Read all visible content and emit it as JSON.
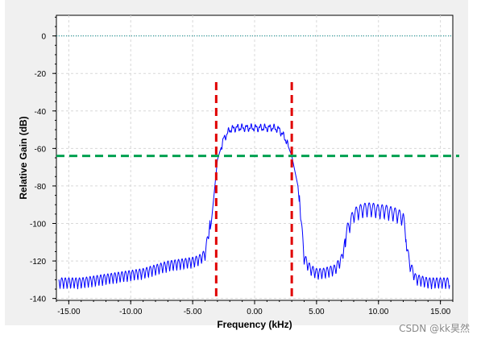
{
  "chart_data": {
    "type": "line",
    "xlabel": "Frequency (kHz)",
    "ylabel": "Relative Gain (dB)",
    "xlim": [
      -16.0,
      16.0
    ],
    "ylim": [
      -141,
      11
    ],
    "x_ticks": [
      -15.0,
      -10.0,
      -5.0,
      0.0,
      5.0,
      10.0,
      15.0
    ],
    "x_tick_labels": [
      "-15.00",
      "-10.00",
      "-5.00",
      "0.00",
      "5.00",
      "10.00",
      "15.00"
    ],
    "y_ticks": [
      0,
      -20,
      -40,
      -60,
      -80,
      -100,
      -120,
      -140
    ],
    "y_tick_labels": [
      "0",
      "-20",
      "-40",
      "-60",
      "-80",
      "-100",
      "-120",
      "-140"
    ],
    "grid": true,
    "reference_lines": {
      "zero_level_db": 0,
      "threshold_db": -64,
      "band_edges_khz": [
        -3.1,
        3.0
      ]
    },
    "series": [
      {
        "color": "#0000ff",
        "x": [
          -16.0,
          -15.0,
          -14.0,
          -13.0,
          -12.0,
          -11.0,
          -10.0,
          -9.0,
          -8.0,
          -7.0,
          -6.0,
          -5.0,
          -4.5,
          -4.0,
          -3.5,
          -3.0,
          -2.5,
          -2.0,
          -1.5,
          -1.0,
          -0.5,
          0.0,
          0.5,
          1.0,
          1.5,
          2.0,
          2.5,
          3.0,
          3.5,
          4.0,
          4.5,
          5.0,
          5.5,
          6.0,
          6.5,
          7.0,
          7.5,
          8.0,
          8.5,
          9.0,
          9.5,
          10.0,
          10.5,
          11.0,
          11.5,
          12.0,
          12.5,
          13.0,
          13.5,
          14.0,
          14.5,
          15.0,
          15.5,
          16.0
        ],
        "values": [
          -135,
          -135,
          -135,
          -134,
          -133,
          -132,
          -131,
          -130,
          -128,
          -126,
          -125,
          -124,
          -123,
          -120,
          -100,
          -66,
          -55,
          -50,
          -49,
          -49,
          -49,
          -49,
          -49,
          -49,
          -49,
          -50,
          -55,
          -64,
          -80,
          -122,
          -128,
          -130,
          -130,
          -129,
          -128,
          -123,
          -108,
          -100,
          -98,
          -97,
          -97,
          -98,
          -98,
          -99,
          -100,
          -102,
          -125,
          -133,
          -134,
          -135,
          -135,
          -135,
          -135,
          -135
        ]
      }
    ]
  },
  "watermark": "CSDN @kk昊然"
}
